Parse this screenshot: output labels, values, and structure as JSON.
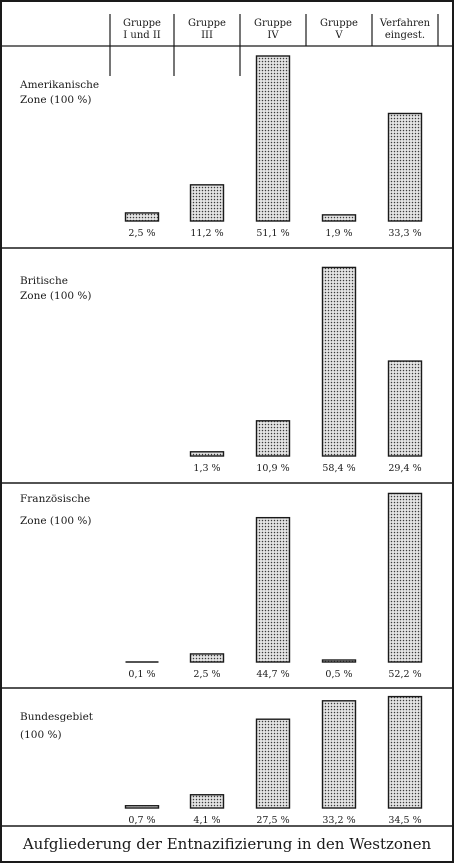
{
  "chart_data": {
    "type": "bar",
    "title": "Aufgliederung der Entnazifizierung in den Westzonen",
    "categories": [
      [
        "Gruppe",
        "I und II"
      ],
      [
        "Gruppe",
        "III"
      ],
      [
        "Gruppe",
        "IV"
      ],
      [
        "Gruppe",
        "V"
      ],
      [
        "Verfahren",
        "eingest."
      ]
    ],
    "panels": [
      {
        "label": [
          "Amerikanische",
          "Zone (100 %)"
        ],
        "values": [
          2.5,
          11.2,
          51.1,
          1.9,
          33.3
        ],
        "value_labels": [
          "2,5 %",
          "11,2 %",
          "51,1 %",
          "1,9 %",
          "33,3 %"
        ]
      },
      {
        "label": [
          "Britische",
          "Zone (100 %)"
        ],
        "values": [
          0,
          1.3,
          10.9,
          58.4,
          29.4
        ],
        "value_labels": [
          "",
          "1,3 %",
          "10,9 %",
          "58,4 %",
          "29,4 %"
        ]
      },
      {
        "label": [
          "Französische",
          "Zone (100 %)"
        ],
        "values": [
          0.1,
          2.5,
          44.7,
          0.5,
          52.2
        ],
        "value_labels": [
          "0,1 %",
          "2,5 %",
          "44,7 %",
          "0,5 %",
          "52,2 %"
        ]
      },
      {
        "label": [
          "Bundesgebiet",
          "(100 %)"
        ],
        "values": [
          0.7,
          4.1,
          27.5,
          33.2,
          34.5
        ],
        "value_labels": [
          "0,7 %",
          "4,1 %",
          "27,5 %",
          "33,2 %",
          "34,5 %"
        ]
      }
    ],
    "colors": {
      "bar_fill": "#dcdcdc",
      "bar_dots": "#3a3a3a",
      "ink": "#1a1a1a"
    }
  }
}
